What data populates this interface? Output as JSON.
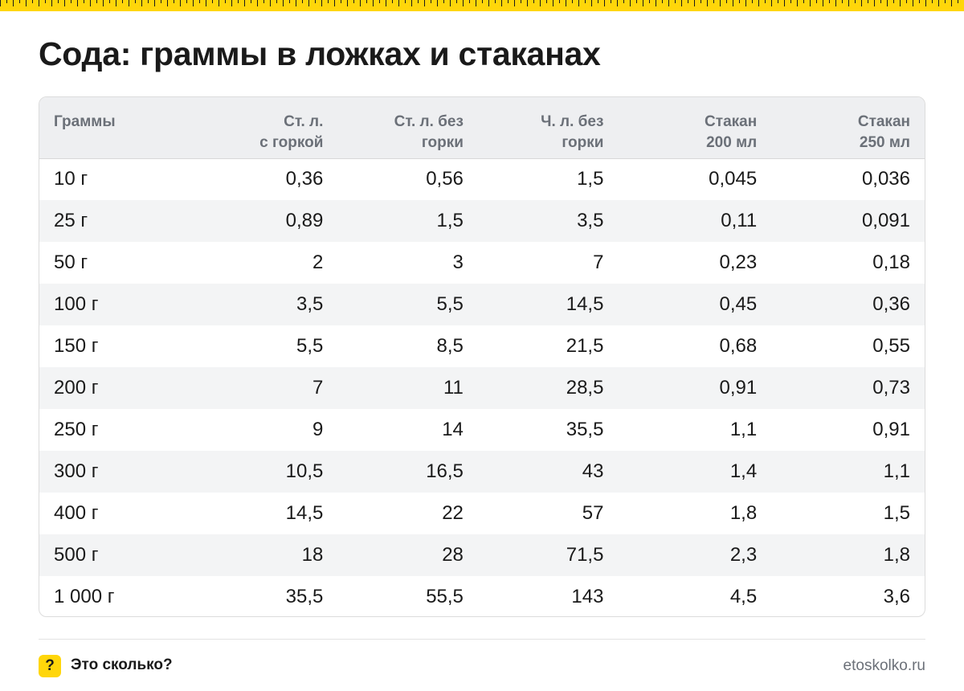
{
  "title": "Сода: граммы в ложках и стаканах",
  "table": {
    "headers": [
      [
        "Граммы"
      ],
      [
        "Ст. л.",
        "с горкой"
      ],
      [
        "Ст. л. без",
        "горки"
      ],
      [
        "Ч. л. без",
        "горки"
      ],
      [
        "Стакан",
        "200 мл"
      ],
      [
        "Стакан",
        "250 мл"
      ]
    ],
    "rows": [
      [
        "10 г",
        "0,36",
        "0,56",
        "1,5",
        "0,045",
        "0,036"
      ],
      [
        "25 г",
        "0,89",
        "1,5",
        "3,5",
        "0,11",
        "0,091"
      ],
      [
        "50 г",
        "2",
        "3",
        "7",
        "0,23",
        "0,18"
      ],
      [
        "100 г",
        "3,5",
        "5,5",
        "14,5",
        "0,45",
        "0,36"
      ],
      [
        "150 г",
        "5,5",
        "8,5",
        "21,5",
        "0,68",
        "0,55"
      ],
      [
        "200 г",
        "7",
        "11",
        "28,5",
        "0,91",
        "0,73"
      ],
      [
        "250 г",
        "9",
        "14",
        "35,5",
        "1,1",
        "0,91"
      ],
      [
        "300 г",
        "10,5",
        "16,5",
        "43",
        "1,4",
        "1,1"
      ],
      [
        "400 г",
        "14,5",
        "22",
        "57",
        "1,8",
        "1,5"
      ],
      [
        "500 г",
        "18",
        "28",
        "71,5",
        "2,3",
        "1,8"
      ],
      [
        "1 000 г",
        "35,5",
        "55,5",
        "143",
        "4,5",
        "3,6"
      ]
    ]
  },
  "footer": {
    "badge": "?",
    "brand": "Это сколько?",
    "url": "etoskolko.ru"
  },
  "colors": {
    "accent": "#ffd60a",
    "header_bg": "#eeeff1",
    "header_text": "#6b7078",
    "stripe": "#f3f4f5"
  }
}
